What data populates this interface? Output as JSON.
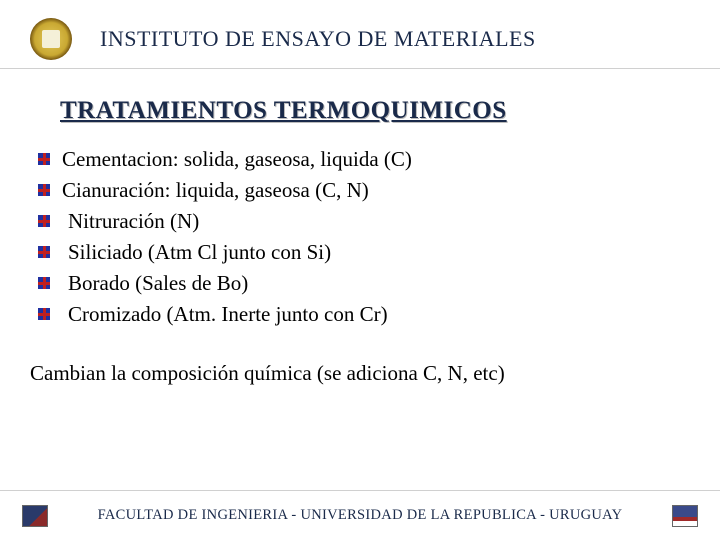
{
  "header": {
    "title": "INSTITUTO DE ENSAYO DE MATERIALES"
  },
  "subtitle": "TRATAMIENTOS  TERMOQUIMICOS",
  "items": [
    {
      "text": "Cementacion: solida, gaseosa, liquida (C)",
      "indent": false
    },
    {
      "text": "Cianuración: liquida, gaseosa (C, N)",
      "indent": false
    },
    {
      "text": "Nitruración (N)",
      "indent": true
    },
    {
      "text": "Siliciado (Atm Cl junto con Si)",
      "indent": true
    },
    {
      "text": "Borado  (Sales de Bo)",
      "indent": true
    },
    {
      "text": "Cromizado (Atm. Inerte junto con Cr)",
      "indent": true
    }
  ],
  "note": "Cambian la composición química (se adiciona C, N, etc)",
  "footer": {
    "text": "FACULTAD DE INGENIERIA - UNIVERSIDAD DE LA REPUBLICA - URUGUAY"
  },
  "colors": {
    "heading": "#1a2a4a",
    "body": "#000000",
    "background": "#ffffff",
    "divider": "#d0d0d0"
  }
}
